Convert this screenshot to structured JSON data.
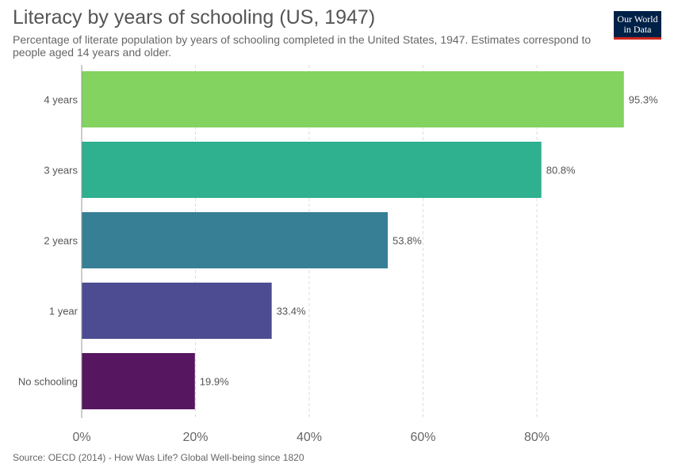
{
  "header": {
    "title": "Literacy by years of schooling (US, 1947)",
    "subtitle": "Percentage of literate population by years of schooling completed in the United States, 1947. Estimates correspond to people aged 14 years and older."
  },
  "logo": {
    "line1": "Our World",
    "line2": "in Data"
  },
  "footer": {
    "source": "Source: OECD (2014) - How Was Life? Global Well-being since 1820"
  },
  "chart_data": {
    "type": "bar",
    "orientation": "horizontal",
    "categories": [
      "4 years",
      "3 years",
      "2 years",
      "1 year",
      "No schooling"
    ],
    "values": [
      95.3,
      80.8,
      53.8,
      33.4,
      19.9
    ],
    "data_labels": [
      "95.3%",
      "80.8%",
      "53.8%",
      "33.4%",
      "19.9%"
    ],
    "colors": [
      "#82d35f",
      "#2fb08f",
      "#367f95",
      "#4d4c92",
      "#561660"
    ],
    "xlim": [
      0,
      100
    ],
    "xticks": [
      0,
      20,
      40,
      60,
      80
    ],
    "xtick_labels": [
      "0%",
      "20%",
      "40%",
      "60%",
      "80%"
    ],
    "grid": "vertical dashed",
    "xlabel": "",
    "ylabel": ""
  }
}
